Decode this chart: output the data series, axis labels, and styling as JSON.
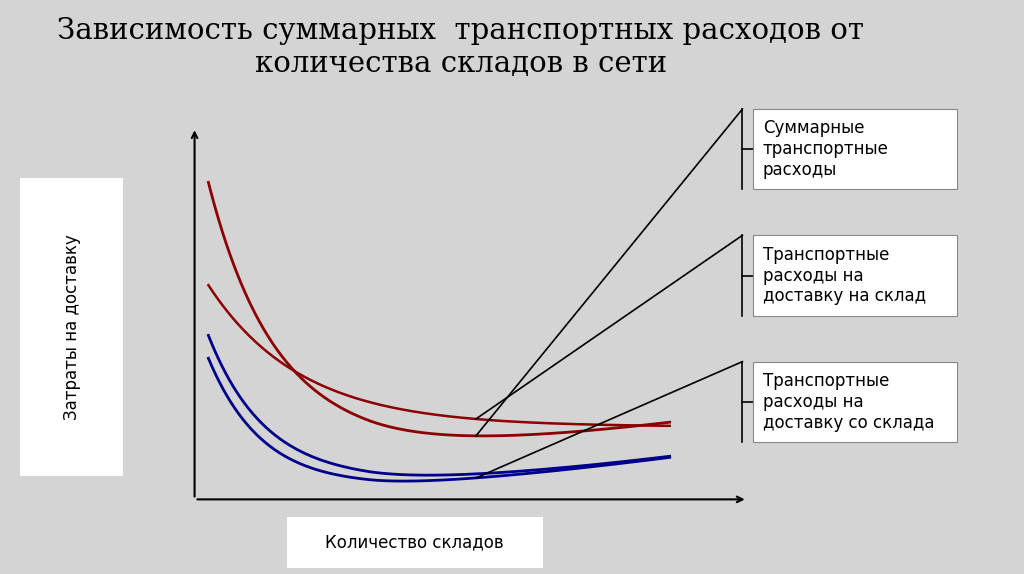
{
  "title": "Зависимость суммарных  транспортных расходов от\nколичества складов в сети",
  "xlabel": "Количество складов",
  "ylabel": "Затраты на доставку",
  "bg_color": "#d4d4d4",
  "title_fontsize": 21,
  "label_fontsize": 12,
  "annotation_fontsize": 12,
  "dark_red": "#8B0000",
  "dark_blue": "#00008B",
  "ann_labels": [
    "Суммарные\nтранспортные\nрасходы",
    "Транспортные\nрасходы на\nдоставку на склад",
    "Транспортные\nрасходы на\nдоставку со склада"
  ]
}
